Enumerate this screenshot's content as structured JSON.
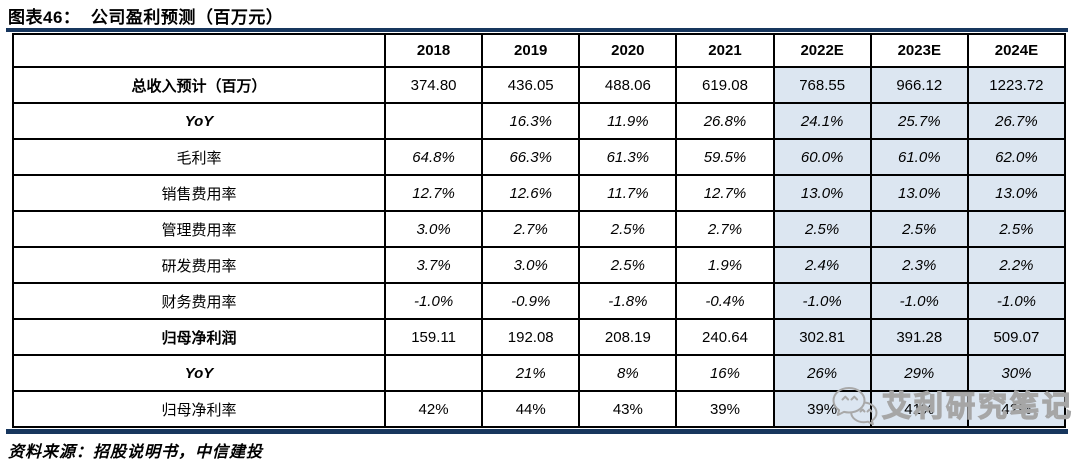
{
  "title": "图表46：  公司盈利预测（百万元）",
  "footer": {
    "source": "资料来源：招股说明书，中信建投"
  },
  "watermark": {
    "text": "艾利研究笔记",
    "icon": "wechat-chat-bubbles-icon"
  },
  "colors": {
    "rule_navy": "#17365D",
    "forecast_fill": "#DCE6F1",
    "grid": "#000000",
    "watermark_gray": "#A6A6A6"
  },
  "chart_data": {
    "type": "table",
    "title": "图表46：  公司盈利预测（百万元）",
    "columns": [
      "",
      "2018",
      "2019",
      "2020",
      "2021",
      "2022E",
      "2023E",
      "2024E"
    ],
    "forecast_column_indexes": [
      5,
      6,
      7
    ],
    "rows": [
      {
        "label": "总收入预计（百万）",
        "label_style": "bold",
        "values_style": "normal",
        "values": [
          "374.80",
          "436.05",
          "488.06",
          "619.08",
          "768.55",
          "966.12",
          "1223.72"
        ]
      },
      {
        "label": "YoY",
        "label_style": "italic",
        "values_style": "italic",
        "values": [
          "",
          "16.3%",
          "11.9%",
          "26.8%",
          "24.1%",
          "25.7%",
          "26.7%"
        ]
      },
      {
        "label": "毛利率",
        "label_style": "normal",
        "values_style": "italic",
        "values": [
          "64.8%",
          "66.3%",
          "61.3%",
          "59.5%",
          "60.0%",
          "61.0%",
          "62.0%"
        ]
      },
      {
        "label": "销售费用率",
        "label_style": "normal",
        "values_style": "italic",
        "values": [
          "12.7%",
          "12.6%",
          "11.7%",
          "12.7%",
          "13.0%",
          "13.0%",
          "13.0%"
        ]
      },
      {
        "label": "管理费用率",
        "label_style": "normal",
        "values_style": "italic",
        "values": [
          "3.0%",
          "2.7%",
          "2.5%",
          "2.7%",
          "2.5%",
          "2.5%",
          "2.5%"
        ]
      },
      {
        "label": "研发费用率",
        "label_style": "normal",
        "values_style": "italic",
        "values": [
          "3.7%",
          "3.0%",
          "2.5%",
          "1.9%",
          "2.4%",
          "2.3%",
          "2.2%"
        ]
      },
      {
        "label": "财务费用率",
        "label_style": "normal",
        "values_style": "italic",
        "values": [
          "-1.0%",
          "-0.9%",
          "-1.8%",
          "-0.4%",
          "-1.0%",
          "-1.0%",
          "-1.0%"
        ]
      },
      {
        "label": "归母净利润",
        "label_style": "bold",
        "values_style": "normal",
        "values": [
          "159.11",
          "192.08",
          "208.19",
          "240.64",
          "302.81",
          "391.28",
          "509.07"
        ]
      },
      {
        "label": "YoY",
        "label_style": "italic",
        "values_style": "italic",
        "values": [
          "",
          "21%",
          "8%",
          "16%",
          "26%",
          "29%",
          "30%"
        ]
      },
      {
        "label": "归母净利率",
        "label_style": "normal",
        "values_style": "normal",
        "values": [
          "42%",
          "44%",
          "43%",
          "39%",
          "39%",
          "41%",
          "42%"
        ]
      }
    ]
  }
}
